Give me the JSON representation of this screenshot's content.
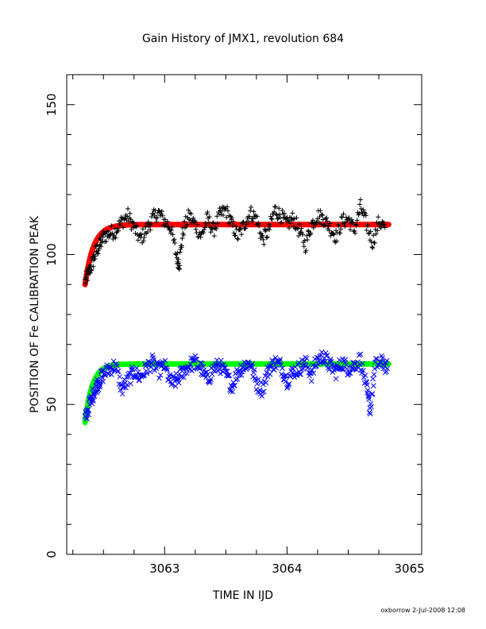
{
  "chart_data": {
    "type": "scatter",
    "title": "Gain History of JMX1, revolution 684",
    "xlabel": "TIME IN IJD",
    "ylabel": "POSITION OF Fe CALIBRATION PEAK",
    "xlim": [
      3062.2,
      3065.1
    ],
    "ylim": [
      0,
      160
    ],
    "x_ticks": [
      3063,
      3064,
      3065
    ],
    "y_ticks": [
      0,
      50,
      100,
      150
    ],
    "grid": false,
    "x_range_data": [
      3062.35,
      3064.83
    ],
    "series": [
      {
        "marker": "+",
        "color": "#000000",
        "points": [
          [
            3062.35,
            91
          ],
          [
            3062.38,
            94
          ],
          [
            3062.41,
            97
          ],
          [
            3062.44,
            101
          ],
          [
            3062.47,
            103
          ],
          [
            3062.5,
            106
          ],
          [
            3062.55,
            107
          ],
          [
            3062.6,
            108
          ],
          [
            3062.65,
            111
          ],
          [
            3062.7,
            113
          ],
          [
            3062.75,
            109
          ],
          [
            3062.8,
            105
          ],
          [
            3062.85,
            108
          ],
          [
            3062.9,
            112
          ],
          [
            3062.95,
            114
          ],
          [
            3063.0,
            111
          ],
          [
            3063.05,
            109
          ],
          [
            3063.1,
            99
          ],
          [
            3063.12,
            97
          ],
          [
            3063.15,
            108
          ],
          [
            3063.2,
            113
          ],
          [
            3063.25,
            110
          ],
          [
            3063.3,
            106
          ],
          [
            3063.35,
            112
          ],
          [
            3063.4,
            108
          ],
          [
            3063.45,
            113
          ],
          [
            3063.5,
            115
          ],
          [
            3063.55,
            110
          ],
          [
            3063.6,
            106
          ],
          [
            3063.65,
            110
          ],
          [
            3063.7,
            114
          ],
          [
            3063.75,
            112
          ],
          [
            3063.8,
            105
          ],
          [
            3063.85,
            108
          ],
          [
            3063.9,
            115
          ],
          [
            3063.95,
            113
          ],
          [
            3064.0,
            110
          ],
          [
            3064.05,
            112
          ],
          [
            3064.1,
            108
          ],
          [
            3064.15,
            103
          ],
          [
            3064.2,
            110
          ],
          [
            3064.25,
            113
          ],
          [
            3064.3,
            112
          ],
          [
            3064.35,
            109
          ],
          [
            3064.4,
            106
          ],
          [
            3064.45,
            111
          ],
          [
            3064.5,
            112
          ],
          [
            3064.55,
            108
          ],
          [
            3064.6,
            116
          ],
          [
            3064.65,
            110
          ],
          [
            3064.7,
            104
          ],
          [
            3064.75,
            111
          ],
          [
            3064.8,
            109
          ]
        ]
      },
      {
        "marker": "x",
        "color": "#0000ff",
        "points": [
          [
            3062.35,
            45
          ],
          [
            3062.38,
            49
          ],
          [
            3062.41,
            53
          ],
          [
            3062.44,
            56
          ],
          [
            3062.47,
            58
          ],
          [
            3062.5,
            60
          ],
          [
            3062.55,
            62
          ],
          [
            3062.6,
            63
          ],
          [
            3062.65,
            55
          ],
          [
            3062.7,
            58
          ],
          [
            3062.75,
            61
          ],
          [
            3062.8,
            59
          ],
          [
            3062.85,
            62
          ],
          [
            3062.9,
            64
          ],
          [
            3062.95,
            61
          ],
          [
            3063.0,
            63
          ],
          [
            3063.05,
            57
          ],
          [
            3063.1,
            58
          ],
          [
            3063.15,
            61
          ],
          [
            3063.2,
            63
          ],
          [
            3063.25,
            64
          ],
          [
            3063.3,
            62
          ],
          [
            3063.35,
            58
          ],
          [
            3063.4,
            62
          ],
          [
            3063.45,
            63
          ],
          [
            3063.5,
            60
          ],
          [
            3063.55,
            56
          ],
          [
            3063.6,
            61
          ],
          [
            3063.65,
            63
          ],
          [
            3063.7,
            64
          ],
          [
            3063.75,
            57
          ],
          [
            3063.8,
            55
          ],
          [
            3063.85,
            62
          ],
          [
            3063.9,
            64
          ],
          [
            3063.95,
            63
          ],
          [
            3064.0,
            58
          ],
          [
            3064.05,
            61
          ],
          [
            3064.1,
            62
          ],
          [
            3064.15,
            64
          ],
          [
            3064.2,
            60
          ],
          [
            3064.25,
            65
          ],
          [
            3064.3,
            66
          ],
          [
            3064.35,
            63
          ],
          [
            3064.4,
            61
          ],
          [
            3064.45,
            64
          ],
          [
            3064.5,
            62
          ],
          [
            3064.55,
            63
          ],
          [
            3064.6,
            65
          ],
          [
            3064.65,
            55
          ],
          [
            3064.68,
            48
          ],
          [
            3064.72,
            63
          ],
          [
            3064.78,
            64
          ],
          [
            3064.82,
            62
          ]
        ]
      }
    ],
    "fits": [
      {
        "color": "#ff0000",
        "y_start": 90,
        "y_end": 110,
        "tau": 0.07
      },
      {
        "color": "#00ff00",
        "y_start": 44,
        "y_end": 63.5,
        "tau": 0.06,
        "slope": 1.0
      }
    ]
  },
  "footer": "oxborrow   2-Jul-2008 12:08"
}
